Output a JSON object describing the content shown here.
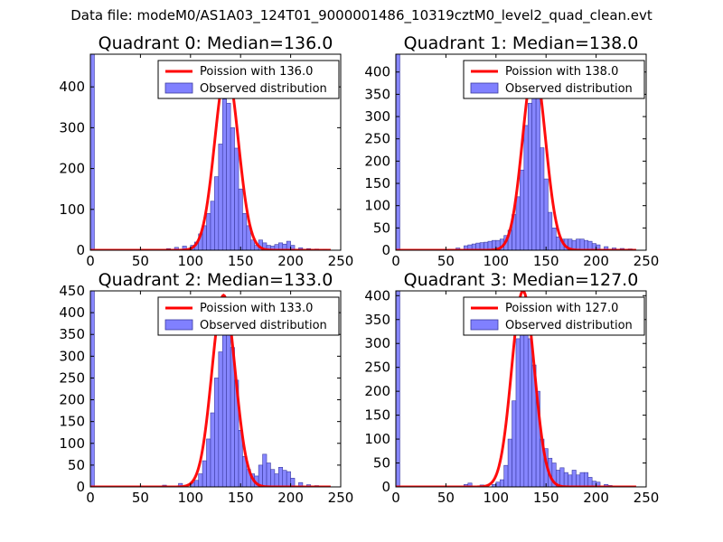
{
  "figure_title": "Data file: modeM0/AS1A03_124T01_9000001486_10319cztM0_level2_quad_clean.evt",
  "colors": {
    "observed_fill": "#8080ff",
    "observed_edge": "#3a3aa0",
    "fit_line": "#ff0000",
    "axes": "#000000"
  },
  "chart_data": [
    {
      "type": "bar",
      "title": "Quadrant 0: Median=136.0",
      "median": 136.0,
      "xlabel": "",
      "ylabel": "",
      "xlim": [
        0,
        250
      ],
      "ylim": [
        0,
        480
      ],
      "xticks": [
        0,
        50,
        100,
        150,
        200,
        250
      ],
      "yticks": [
        0,
        100,
        200,
        300,
        400
      ],
      "legend": {
        "placement": "top-right",
        "entries": [
          "Poission with 136.0",
          "Observed distribution"
        ]
      },
      "bin_width": 4,
      "bins": [
        [
          0,
          480
        ],
        [
          76,
          4
        ],
        [
          84,
          7
        ],
        [
          92,
          10
        ],
        [
          100,
          12
        ],
        [
          104,
          20
        ],
        [
          108,
          40
        ],
        [
          112,
          60
        ],
        [
          116,
          90
        ],
        [
          120,
          120
        ],
        [
          124,
          180
        ],
        [
          128,
          260
        ],
        [
          132,
          370
        ],
        [
          136,
          360
        ],
        [
          140,
          300
        ],
        [
          144,
          250
        ],
        [
          148,
          150
        ],
        [
          152,
          90
        ],
        [
          156,
          60
        ],
        [
          160,
          25
        ],
        [
          164,
          12
        ],
        [
          168,
          25
        ],
        [
          172,
          18
        ],
        [
          176,
          12
        ],
        [
          180,
          10
        ],
        [
          184,
          14
        ],
        [
          188,
          18
        ],
        [
          192,
          15
        ],
        [
          196,
          22
        ],
        [
          200,
          12
        ],
        [
          208,
          6
        ],
        [
          216,
          4
        ],
        [
          224,
          3
        ],
        [
          232,
          2
        ]
      ],
      "fit": {
        "mean": 136.0,
        "sigma": 11.7,
        "peak": 445
      }
    },
    {
      "type": "bar",
      "title": "Quadrant 1: Median=138.0",
      "median": 138.0,
      "xlabel": "",
      "ylabel": "",
      "xlim": [
        0,
        250
      ],
      "ylim": [
        0,
        440
      ],
      "xticks": [
        0,
        50,
        100,
        150,
        200,
        250
      ],
      "yticks": [
        0,
        50,
        100,
        150,
        200,
        250,
        300,
        350,
        400
      ],
      "legend": {
        "placement": "top-right",
        "entries": [
          "Poission with 138.0",
          "Observed distribution"
        ]
      },
      "bin_width": 4,
      "bins": [
        [
          0,
          440
        ],
        [
          60,
          5
        ],
        [
          68,
          10
        ],
        [
          72,
          12
        ],
        [
          76,
          14
        ],
        [
          80,
          16
        ],
        [
          84,
          17
        ],
        [
          88,
          18
        ],
        [
          92,
          20
        ],
        [
          96,
          22
        ],
        [
          100,
          22
        ],
        [
          104,
          25
        ],
        [
          108,
          33
        ],
        [
          112,
          45
        ],
        [
          116,
          80
        ],
        [
          120,
          120
        ],
        [
          124,
          180
        ],
        [
          128,
          280
        ],
        [
          132,
          330
        ],
        [
          136,
          370
        ],
        [
          140,
          395
        ],
        [
          144,
          230
        ],
        [
          148,
          160
        ],
        [
          152,
          85
        ],
        [
          156,
          50
        ],
        [
          160,
          30
        ],
        [
          164,
          25
        ],
        [
          168,
          25
        ],
        [
          172,
          25
        ],
        [
          176,
          22
        ],
        [
          180,
          25
        ],
        [
          184,
          25
        ],
        [
          188,
          22
        ],
        [
          192,
          20
        ],
        [
          196,
          15
        ],
        [
          200,
          12
        ],
        [
          208,
          8
        ],
        [
          216,
          5
        ],
        [
          224,
          4
        ],
        [
          232,
          3
        ]
      ],
      "fit": {
        "mean": 138.0,
        "sigma": 11.4,
        "peak": 415
      }
    },
    {
      "type": "bar",
      "title": "Quadrant 2: Median=133.0",
      "median": 133.0,
      "xlabel": "",
      "ylabel": "",
      "xlim": [
        0,
        250
      ],
      "ylim": [
        0,
        450
      ],
      "xticks": [
        0,
        50,
        100,
        150,
        200,
        250
      ],
      "yticks": [
        0,
        50,
        100,
        150,
        200,
        250,
        300,
        350,
        400,
        450
      ],
      "legend": {
        "placement": "top-right",
        "entries": [
          "Poission with 133.0",
          "Observed distribution"
        ]
      },
      "bin_width": 4,
      "bins": [
        [
          0,
          450
        ],
        [
          72,
          4
        ],
        [
          88,
          8
        ],
        [
          100,
          10
        ],
        [
          104,
          15
        ],
        [
          108,
          30
        ],
        [
          112,
          60
        ],
        [
          116,
          110
        ],
        [
          120,
          170
        ],
        [
          124,
          250
        ],
        [
          128,
          310
        ],
        [
          132,
          380
        ],
        [
          136,
          375
        ],
        [
          140,
          320
        ],
        [
          144,
          245
        ],
        [
          148,
          130
        ],
        [
          152,
          70
        ],
        [
          156,
          40
        ],
        [
          160,
          30
        ],
        [
          164,
          25
        ],
        [
          168,
          50
        ],
        [
          172,
          75
        ],
        [
          176,
          55
        ],
        [
          180,
          40
        ],
        [
          184,
          30
        ],
        [
          188,
          45
        ],
        [
          192,
          38
        ],
        [
          196,
          35
        ],
        [
          200,
          20
        ],
        [
          208,
          10
        ],
        [
          216,
          5
        ],
        [
          224,
          3
        ]
      ],
      "fit": {
        "mean": 133.0,
        "sigma": 11.6,
        "peak": 440
      }
    },
    {
      "type": "bar",
      "title": "Quadrant 3: Median=127.0",
      "median": 127.0,
      "xlabel": "",
      "ylabel": "",
      "xlim": [
        0,
        250
      ],
      "ylim": [
        0,
        410
      ],
      "xticks": [
        0,
        50,
        100,
        150,
        200,
        250
      ],
      "yticks": [
        0,
        50,
        100,
        150,
        200,
        250,
        300,
        350,
        400
      ],
      "legend": {
        "placement": "top-right",
        "entries": [
          "Poission with 127.0",
          "Observed distribution"
        ]
      },
      "bin_width": 4,
      "bins": [
        [
          0,
          410
        ],
        [
          68,
          5
        ],
        [
          72,
          8
        ],
        [
          84,
          4
        ],
        [
          96,
          5
        ],
        [
          100,
          10
        ],
        [
          104,
          15
        ],
        [
          108,
          45
        ],
        [
          112,
          100
        ],
        [
          116,
          180
        ],
        [
          120,
          310
        ],
        [
          124,
          335
        ],
        [
          128,
          350
        ],
        [
          132,
          310
        ],
        [
          136,
          255
        ],
        [
          140,
          200
        ],
        [
          144,
          100
        ],
        [
          148,
          80
        ],
        [
          152,
          60
        ],
        [
          156,
          50
        ],
        [
          160,
          35
        ],
        [
          164,
          40
        ],
        [
          168,
          30
        ],
        [
          172,
          25
        ],
        [
          176,
          35
        ],
        [
          180,
          25
        ],
        [
          184,
          30
        ],
        [
          188,
          30
        ],
        [
          192,
          20
        ],
        [
          196,
          12
        ],
        [
          200,
          10
        ],
        [
          208,
          5
        ],
        [
          212,
          3
        ]
      ],
      "fit": {
        "mean": 127.0,
        "sigma": 11.3,
        "peak": 410
      }
    }
  ]
}
